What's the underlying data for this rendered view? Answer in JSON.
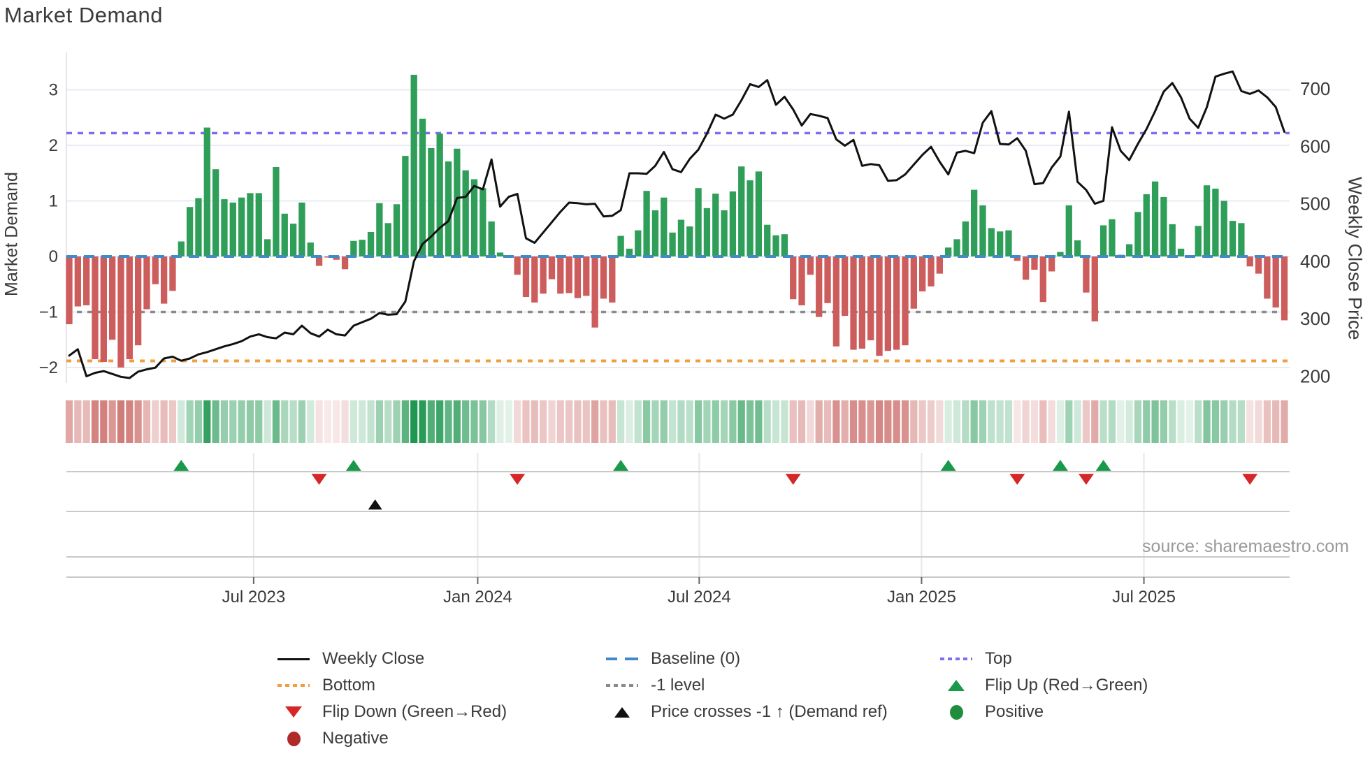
{
  "title": "Market Demand",
  "source_note": "source: sharemaestro.com",
  "axes": {
    "left_label": "Market Demand",
    "right_label": "Weekly Close Price",
    "left_tick_labels": [
      "3",
      "2",
      "1",
      "0",
      "−1",
      "−2"
    ],
    "left_tick_values": [
      3,
      2,
      1,
      0,
      -1,
      -2
    ],
    "right_tick_labels": [
      "700",
      "600",
      "500",
      "400",
      "300",
      "200"
    ],
    "right_tick_values": [
      700,
      600,
      500,
      400,
      300,
      200
    ]
  },
  "chart_data": {
    "type": "bar+line combo with heatmap strip and event-marker rows",
    "title": "Market Demand",
    "x_axis": {
      "unit": "weekly",
      "tick_labels": [
        "Jul 2023",
        "Jan 2024",
        "Jul 2024",
        "Jan 2025",
        "Jul 2025"
      ],
      "tick_weeks": [
        21.4,
        47.4,
        73.1,
        98.9,
        124.7
      ]
    },
    "left_axis": {
      "label": "Market Demand",
      "ticks": [
        3,
        2,
        1,
        0,
        -1,
        -2
      ]
    },
    "right_axis": {
      "label": "Weekly Close Price",
      "ticks": [
        700,
        600,
        500,
        400,
        300,
        200
      ]
    },
    "ref_lines": [
      {
        "name": "Top",
        "value": 2.22,
        "style": "dotted",
        "color": "#7b6ff0"
      },
      {
        "name": "Baseline (0)",
        "value": 0,
        "style": "dashed",
        "color": "#4289c8"
      },
      {
        "name": "-1 level",
        "value": -1,
        "style": "dotted",
        "color": "#8a8a8a"
      },
      {
        "name": "Bottom",
        "value": -1.88,
        "style": "dotted",
        "color": "#ef9f3f"
      }
    ],
    "series": [
      {
        "name": "Market Demand",
        "type": "bar",
        "axis": "left",
        "positive_color": "#2f9e58",
        "negative_color": "#cd5c5c",
        "values": [
          -1.22,
          -0.9,
          -0.88,
          -1.85,
          -1.9,
          -1.5,
          -2.0,
          -1.85,
          -1.6,
          -0.95,
          -0.5,
          -0.85,
          -0.62,
          0.27,
          0.89,
          1.05,
          2.32,
          1.57,
          1.03,
          0.97,
          1.06,
          1.14,
          1.14,
          0.31,
          1.61,
          0.77,
          0.59,
          0.97,
          0.25,
          -0.17,
          -0.02,
          -0.06,
          -0.23,
          0.28,
          0.3,
          0.44,
          0.96,
          0.6,
          0.94,
          1.81,
          3.27,
          2.48,
          1.95,
          2.21,
          1.71,
          1.94,
          1.55,
          1.39,
          1.23,
          0.63,
          0.07,
          0.02,
          -0.33,
          -0.73,
          -0.83,
          -0.67,
          -0.41,
          -0.67,
          -0.66,
          -0.75,
          -0.71,
          -1.28,
          -0.76,
          -0.83,
          0.37,
          0.14,
          0.47,
          1.18,
          0.83,
          1.06,
          0.43,
          0.66,
          0.54,
          1.23,
          0.87,
          1.13,
          0.83,
          1.17,
          1.62,
          1.37,
          1.53,
          0.57,
          0.38,
          0.4,
          -0.77,
          -0.88,
          -0.33,
          -1.09,
          -0.84,
          -1.62,
          -1.07,
          -1.68,
          -1.66,
          -1.51,
          -1.79,
          -1.7,
          -1.68,
          -1.6,
          -0.94,
          -0.63,
          -0.54,
          -0.31,
          0.16,
          0.31,
          0.63,
          1.2,
          0.92,
          0.51,
          0.45,
          0.47,
          -0.08,
          -0.42,
          -0.24,
          -0.82,
          -0.27,
          0.08,
          0.92,
          0.29,
          -0.65,
          -1.17,
          0.56,
          0.67,
          0.03,
          0.22,
          0.8,
          1.12,
          1.35,
          1.07,
          0.58,
          0.14,
          0.02,
          0.55,
          1.28,
          1.22,
          1.0,
          0.64,
          0.6,
          -0.18,
          -0.31,
          -0.76,
          -0.92,
          -1.15
        ]
      },
      {
        "name": "Weekly Close",
        "type": "line",
        "axis": "right",
        "color": "#111111",
        "values": [
          236,
          247,
          200,
          206,
          209,
          204,
          199,
          197,
          208,
          212,
          215,
          231,
          234,
          227,
          231,
          238,
          242,
          247,
          252,
          256,
          261,
          269,
          273,
          268,
          266,
          276,
          273,
          288,
          275,
          269,
          281,
          273,
          271,
          288,
          294,
          300,
          310,
          307,
          308,
          330,
          400,
          430,
          443,
          458,
          470,
          510,
          512,
          531,
          525,
          577,
          495,
          512,
          517,
          440,
          432,
          450,
          468,
          486,
          502,
          501,
          499,
          500,
          478,
          479,
          489,
          553,
          553,
          552,
          566,
          590,
          560,
          555,
          578,
          594,
          622,
          655,
          648,
          655,
          680,
          708,
          703,
          715,
          672,
          686,
          664,
          636,
          656,
          653,
          649,
          612,
          601,
          611,
          566,
          569,
          567,
          540,
          541,
          551,
          568,
          585,
          599,
          573,
          551,
          589,
          592,
          588,
          641,
          661,
          604,
          603,
          614,
          592,
          534,
          536,
          563,
          582,
          660,
          538,
          524,
          500,
          505,
          633,
          592,
          576,
          604,
          630,
          661,
          695,
          710,
          685,
          648,
          632,
          668,
          721,
          726,
          730,
          696,
          691,
          697,
          685,
          668,
          625
        ]
      }
    ],
    "heatmap_strip": {
      "source": "Market Demand values",
      "positive_color": "#1f9750",
      "negative_color": "#c45a56"
    },
    "markers": {
      "flip_up_weeks": [
        13,
        33,
        64,
        102,
        115,
        120
      ],
      "flip_down_weeks": [
        29,
        52,
        84,
        110,
        118,
        137
      ],
      "price_cross_weeks": [
        35.5
      ],
      "flip_up_color": "#189a4a",
      "flip_down_color": "#d62728",
      "price_cross_color": "#111111"
    }
  },
  "legend": {
    "columns": [
      {
        "items": [
          {
            "label": "Weekly Close"
          },
          {
            "label": "Bottom"
          },
          {
            "label": "Flip Down (Green→Red)"
          },
          {
            "label": "Negative"
          }
        ]
      },
      {
        "items": [
          {
            "label": "Baseline (0)"
          },
          {
            "label": "-1 level"
          },
          {
            "label": "Price crosses -1 ↑ (Demand ref)"
          }
        ]
      },
      {
        "items": [
          {
            "label": "Top"
          },
          {
            "label": "Flip Up (Red→Green)"
          },
          {
            "label": "Positive"
          }
        ]
      }
    ]
  },
  "colors": {
    "bar_positive": "#2f9e58",
    "bar_negative": "#cd5c5c",
    "price_line": "#111111",
    "baseline": "#4289c8",
    "top_line": "#7b6ff0",
    "bottom_line": "#ef9f3f",
    "minus1_line": "#8a8a8a",
    "flip_up": "#189a4a",
    "flip_down": "#d62728",
    "grid": "#e9ebf4",
    "panel_line": "#c9c9c9",
    "text": "#3a3a3a",
    "source_text": "#9a9a9a"
  }
}
